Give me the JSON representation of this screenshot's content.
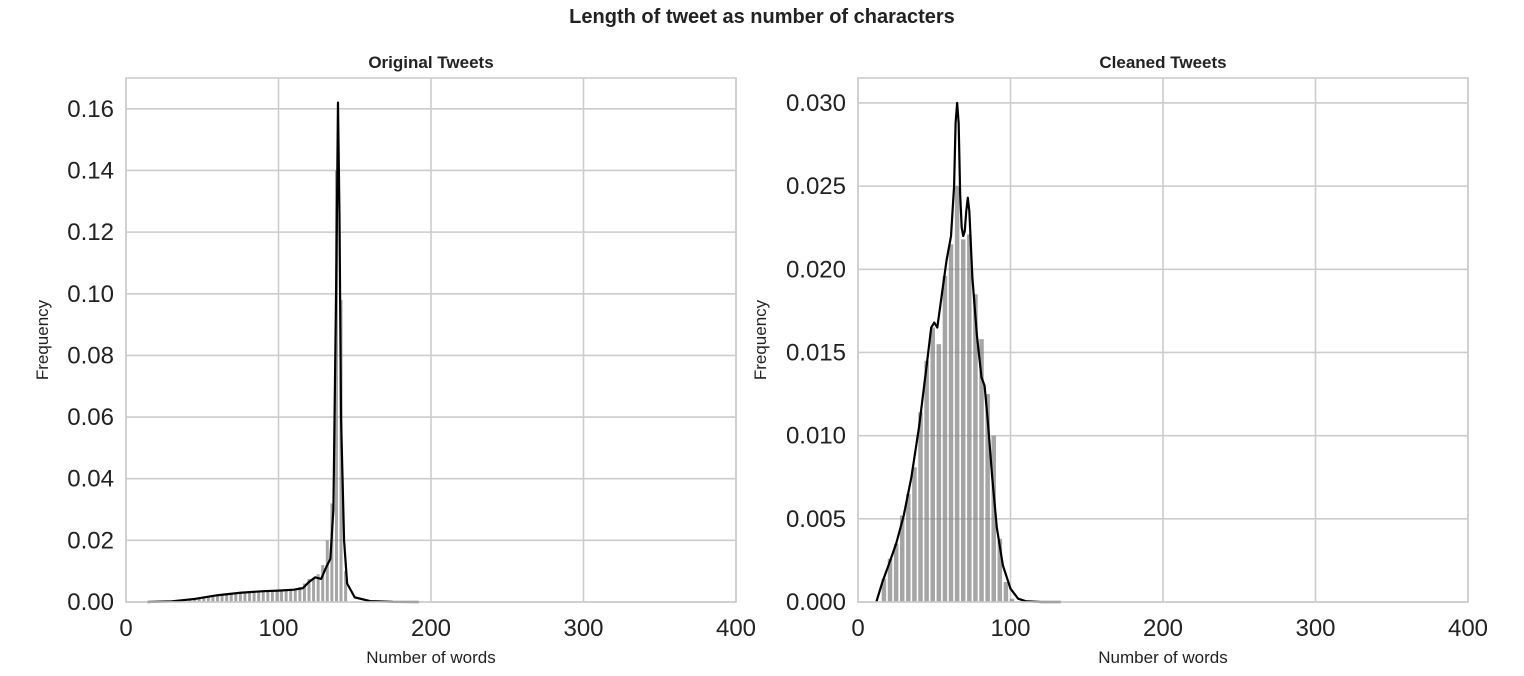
{
  "figure_title": "Length of tweet as number of characters",
  "chart_data": [
    {
      "type": "bar",
      "title": "Original Tweets",
      "xlabel": "Number of words",
      "ylabel": "Frequency",
      "xlim": [
        0,
        400
      ],
      "ylim": [
        0,
        0.17
      ],
      "xticks": [
        0,
        100,
        200,
        300,
        400
      ],
      "yticks": [
        0.0,
        0.02,
        0.04,
        0.06,
        0.08,
        0.1,
        0.12,
        0.14,
        0.16
      ],
      "ytick_labels": [
        "0.00",
        "0.02",
        "0.04",
        "0.06",
        "0.08",
        "0.10",
        "0.12",
        "0.14",
        "0.16"
      ],
      "grid": true,
      "bar_color": "#7f7f7f",
      "kde_color": "#000000",
      "bin_width": 3,
      "histogram": {
        "x": [
          42,
          45,
          48,
          51,
          54,
          57,
          60,
          63,
          66,
          69,
          72,
          75,
          78,
          81,
          84,
          87,
          90,
          93,
          96,
          99,
          102,
          105,
          108,
          111,
          114,
          117,
          120,
          123,
          126,
          129,
          132,
          135,
          138,
          141,
          144
        ],
        "values": [
          0.0005,
          0.0008,
          0.001,
          0.0014,
          0.0018,
          0.002,
          0.0023,
          0.0025,
          0.0027,
          0.0029,
          0.003,
          0.0031,
          0.0032,
          0.0033,
          0.0034,
          0.0035,
          0.0035,
          0.0036,
          0.0036,
          0.0037,
          0.0037,
          0.0038,
          0.0039,
          0.0042,
          0.0048,
          0.006,
          0.0075,
          0.0078,
          0.009,
          0.012,
          0.02,
          0.032,
          0.14,
          0.098,
          0.01
        ]
      },
      "kde": {
        "x": [
          14,
          30,
          45,
          60,
          75,
          90,
          100,
          110,
          116,
          120,
          124,
          128,
          131,
          134,
          136,
          138,
          139,
          140,
          141,
          143,
          145,
          150,
          160,
          175,
          192
        ],
        "y": [
          0.0,
          0.0002,
          0.001,
          0.0022,
          0.003,
          0.0035,
          0.0037,
          0.004,
          0.0045,
          0.0065,
          0.008,
          0.0075,
          0.011,
          0.014,
          0.03,
          0.11,
          0.162,
          0.125,
          0.06,
          0.02,
          0.006,
          0.0015,
          0.0003,
          5e-05,
          0.0
        ]
      }
    },
    {
      "type": "bar",
      "title": "Cleaned Tweets",
      "xlabel": "Number of words",
      "ylabel": "Frequency",
      "xlim": [
        0,
        400
      ],
      "ylim": [
        0,
        0.0315
      ],
      "xticks": [
        0,
        100,
        200,
        300,
        400
      ],
      "yticks": [
        0.0,
        0.005,
        0.01,
        0.015,
        0.02,
        0.025,
        0.03
      ],
      "ytick_labels": [
        "0.000",
        "0.005",
        "0.010",
        "0.015",
        "0.020",
        "0.025",
        "0.030"
      ],
      "grid": true,
      "bar_color": "#7f7f7f",
      "kde_color": "#000000",
      "bin_width": 4,
      "histogram": {
        "x": [
          17,
          21,
          25,
          29,
          33,
          37,
          41,
          45,
          49,
          53,
          57,
          61,
          65,
          69,
          73,
          77,
          81,
          85,
          89,
          93,
          97,
          101
        ],
        "values": [
          0.0014,
          0.0026,
          0.0035,
          0.0052,
          0.0065,
          0.0081,
          0.0114,
          0.0145,
          0.0165,
          0.0155,
          0.0196,
          0.0215,
          0.025,
          0.0218,
          0.0221,
          0.0185,
          0.0158,
          0.0125,
          0.01,
          0.0038,
          0.0012,
          0.0002
        ]
      },
      "kde": {
        "x": [
          12,
          16,
          20,
          25,
          30,
          35,
          40,
          45,
          48,
          50,
          52,
          55,
          58,
          61,
          63,
          64,
          65,
          66,
          67,
          68,
          69,
          70,
          71,
          72,
          73,
          75,
          78,
          81,
          83,
          85,
          88,
          91,
          95,
          100,
          105,
          110,
          120,
          133
        ],
        "y": [
          0.0,
          0.0012,
          0.0022,
          0.0035,
          0.0052,
          0.0075,
          0.0105,
          0.0142,
          0.0165,
          0.0168,
          0.0165,
          0.0185,
          0.0205,
          0.022,
          0.025,
          0.0288,
          0.03,
          0.0288,
          0.0245,
          0.0225,
          0.022,
          0.0223,
          0.0235,
          0.0243,
          0.0235,
          0.0195,
          0.016,
          0.0135,
          0.013,
          0.011,
          0.0075,
          0.0045,
          0.0022,
          0.0008,
          0.0002,
          5e-05,
          0.0,
          0.0
        ]
      }
    }
  ]
}
